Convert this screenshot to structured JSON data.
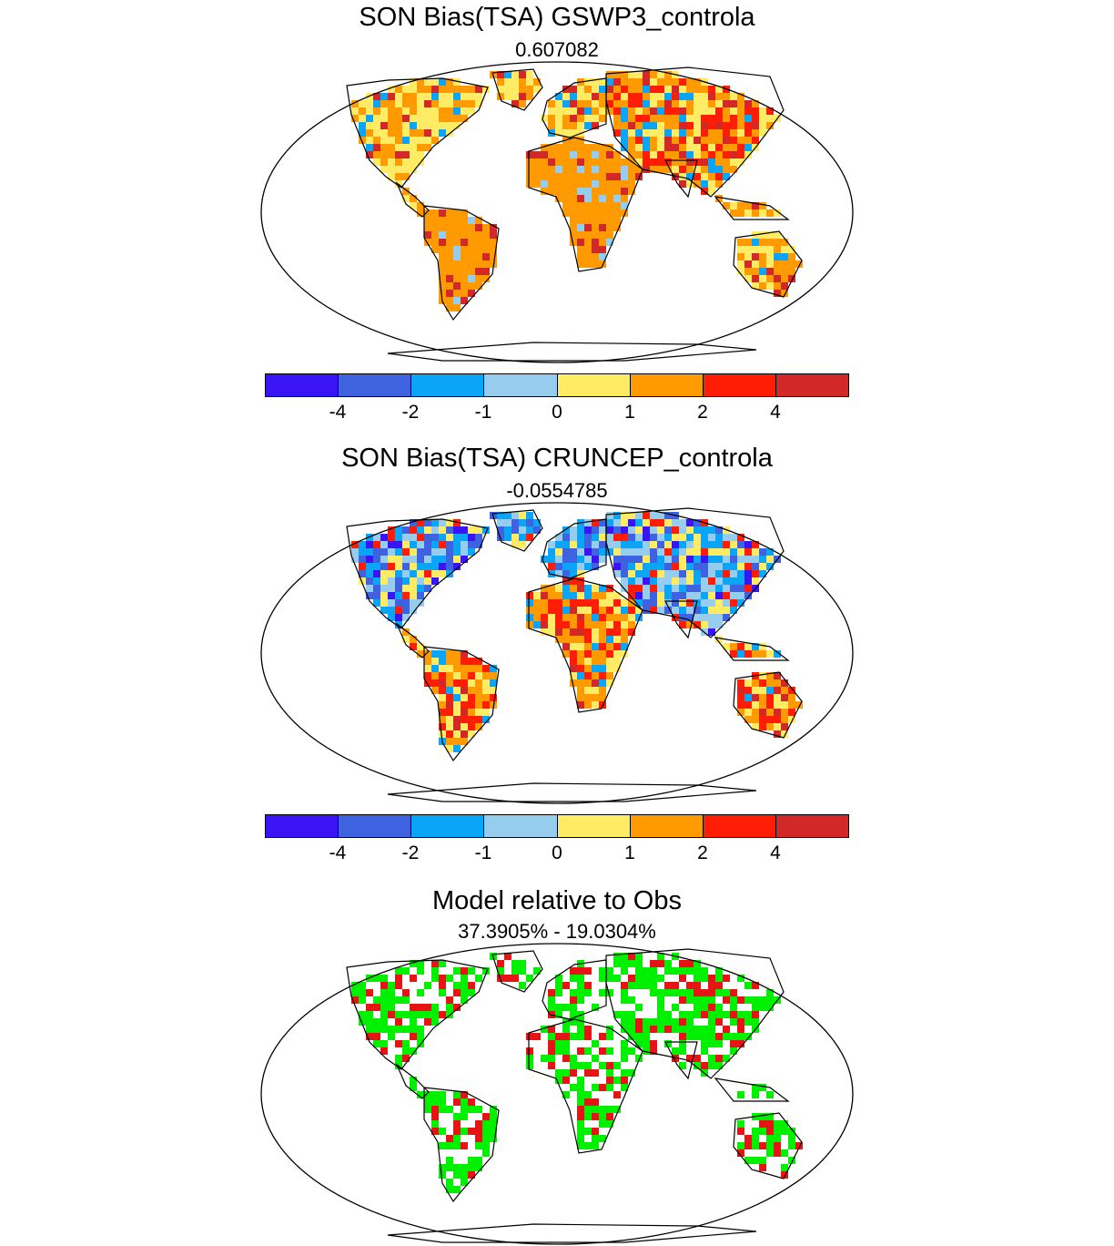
{
  "panels": [
    {
      "title": "SON Bias(TSA) GSWP3_controla",
      "subtitle": "0.607082",
      "kind": "bias"
    },
    {
      "title": "SON Bias(TSA) CRUNCEP_controla",
      "subtitle": "-0.0554785",
      "kind": "bias"
    },
    {
      "title": "Model relative to Obs",
      "subtitle": "37.3905% - 19.0304%",
      "kind": "relative"
    }
  ],
  "colorbar": {
    "colors": [
      "#3a14f5",
      "#3f63e0",
      "#0aa5f7",
      "#96cdee",
      "#ffeb64",
      "#ff9b00",
      "#ff1e05",
      "#d22828"
    ],
    "tick_labels": [
      "-4",
      "-2",
      "-1",
      "0",
      "1",
      "2",
      "4"
    ]
  },
  "relative_colors": {
    "better": "#00f000",
    "worse": "#e61414"
  }
}
